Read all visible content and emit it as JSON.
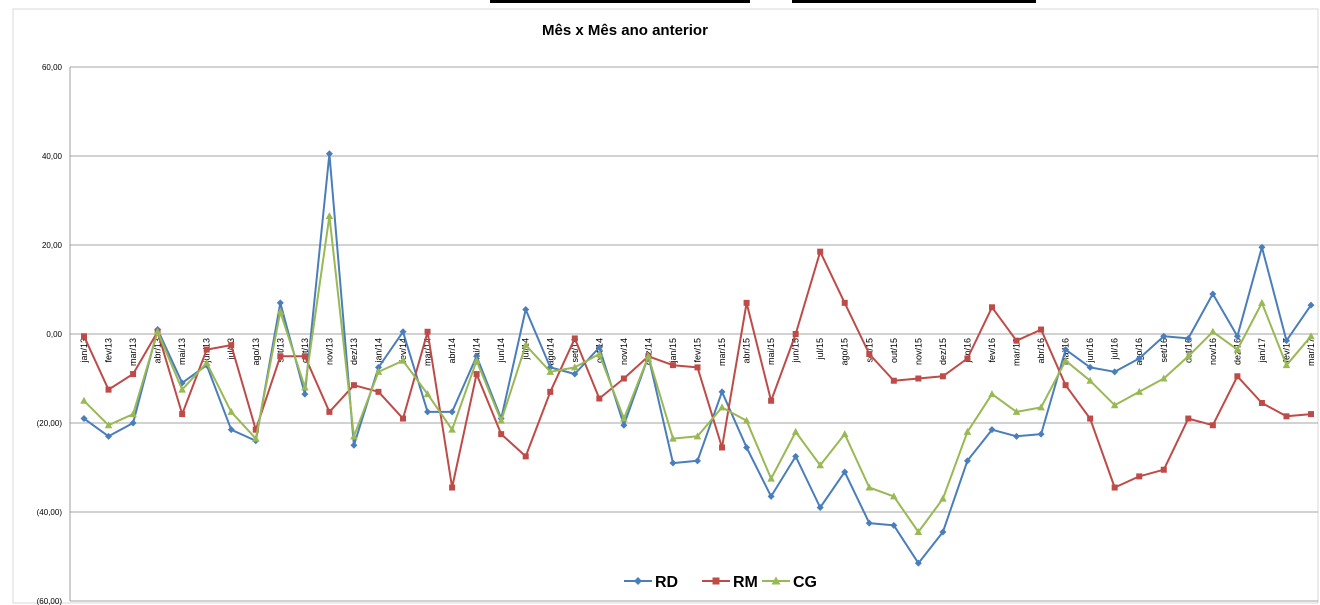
{
  "chart_data": {
    "type": "line",
    "title": "Mês x Mês ano anterior",
    "xlabel": "",
    "ylabel": "",
    "ylim": [
      -60,
      60
    ],
    "yticks": [
      60,
      40,
      20,
      0,
      -20,
      -40,
      -60
    ],
    "ytick_labels": [
      "60,00",
      "40,00",
      "20,00",
      "0,00",
      "(20,00)",
      "(40,00)",
      "(60,00)"
    ],
    "grid": true,
    "legend_position": "bottom",
    "categories": [
      "jan/13",
      "fev/13",
      "mar/13",
      "abr/13",
      "mai/13",
      "jun/13",
      "jul/13",
      "ago/13",
      "set/13",
      "out/13",
      "nov/13",
      "dez/13",
      "jan/14",
      "fev/14",
      "mar/14",
      "abr/14",
      "mai/14",
      "jun/14",
      "jul/14",
      "ago/14",
      "set/14",
      "out/14",
      "nov/14",
      "dez/14",
      "jan/15",
      "fev/15",
      "mar/15",
      "abr/15",
      "mai/15",
      "jun/15",
      "jul/15",
      "ago/15",
      "set/15",
      "out/15",
      "nov/15",
      "dez/15",
      "jan/16",
      "fev/16",
      "mar/16",
      "abr/16",
      "mai/16",
      "jun/16",
      "jul/16",
      "ago/16",
      "set/16",
      "out/16",
      "nov/16",
      "dez/16",
      "jan/17",
      "fev/17",
      "mar/17"
    ],
    "series": [
      {
        "name": "RD",
        "color": "#4a7ebb",
        "marker": "diamond",
        "values": [
          -19,
          -23,
          -20,
          1,
          -11,
          -7,
          -21.5,
          -24,
          7,
          -13.5,
          40.5,
          -25,
          -7.5,
          0.5,
          -17.5,
          -17.5,
          -5,
          -19,
          5.5,
          -7.5,
          -9,
          -3,
          -20.5,
          -5,
          -29,
          -28.5,
          -13,
          -25.5,
          -36.5,
          -27.5,
          -39,
          -31,
          -42.5,
          -43,
          -51.5,
          -44.5,
          -28.5,
          -21.5,
          -23,
          -22.5,
          -3.5,
          -7.5,
          -8.5,
          -5.5,
          -0.5,
          -1,
          9,
          -0.5,
          19.5,
          -1.5,
          6.5
        ]
      },
      {
        "name": "RM",
        "color": "#be4b48",
        "marker": "square",
        "values": [
          -0.5,
          -12.5,
          -9,
          0.5,
          -18,
          -3.5,
          -2.5,
          -21.5,
          -5,
          -5,
          -17.5,
          -11.5,
          -13,
          -19,
          0.5,
          -34.5,
          -9,
          -22.5,
          -27.5,
          -13,
          -1,
          -14.5,
          -10,
          -5,
          -7,
          -7.5,
          -25.5,
          7,
          -15,
          0,
          18.5,
          7,
          -4.5,
          -10.5,
          -10,
          -9.5,
          -5.5,
          6,
          -1.5,
          1,
          -11.5,
          -19,
          -34.5,
          -32,
          -30.5,
          -19,
          -20.5,
          -9.5,
          -15.5,
          -18.5,
          -18
        ]
      },
      {
        "name": "CG",
        "color": "#98b954",
        "marker": "triangle",
        "values": [
          -15,
          -20.5,
          -18,
          0.5,
          -12.5,
          -6.5,
          -17.5,
          -23.5,
          5,
          -12,
          26.5,
          -23,
          -8.5,
          -6,
          -13.5,
          -21.5,
          -6,
          -19.5,
          -2.5,
          -8.5,
          -7.5,
          -4.5,
          -19,
          -5,
          -23.5,
          -23,
          -16.5,
          -19.5,
          -32.5,
          -22,
          -29.5,
          -22.5,
          -34.5,
          -36.5,
          -44.5,
          -37,
          -22,
          -13.5,
          -17.5,
          -16.5,
          -6,
          -10.5,
          -16,
          -13,
          -10,
          -5,
          0.5,
          -3.5,
          7,
          -7,
          -0.5
        ]
      }
    ]
  }
}
